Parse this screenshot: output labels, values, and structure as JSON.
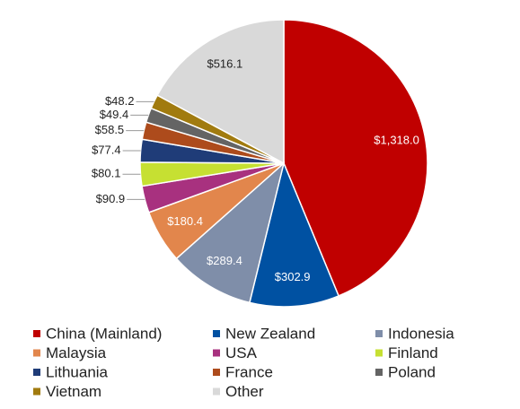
{
  "chart_data": {
    "type": "pie",
    "categories": [
      "China (Mainland)",
      "New Zealand",
      "Indonesia",
      "Malaysia",
      "USA",
      "Finland",
      "Lithuania",
      "France",
      "Poland",
      "Vietnam",
      "Other"
    ],
    "values": [
      1318.0,
      302.9,
      289.4,
      180.4,
      90.9,
      80.1,
      77.4,
      58.5,
      49.4,
      48.2,
      516.1
    ],
    "value_labels": [
      "$1,318.0",
      "$302.9",
      "$289.4",
      "$180.4",
      "$90.9",
      "$80.1",
      "$77.4",
      "$58.5",
      "$49.4",
      "$48.2",
      "$516.1"
    ],
    "colors": [
      "#c00000",
      "#0051a2",
      "#7f8ea9",
      "#e2864c",
      "#a8317f",
      "#c6e032",
      "#1f3c78",
      "#ad4b1c",
      "#646464",
      "#a17b0f",
      "#d9d9d9"
    ],
    "legend": "bottom"
  }
}
